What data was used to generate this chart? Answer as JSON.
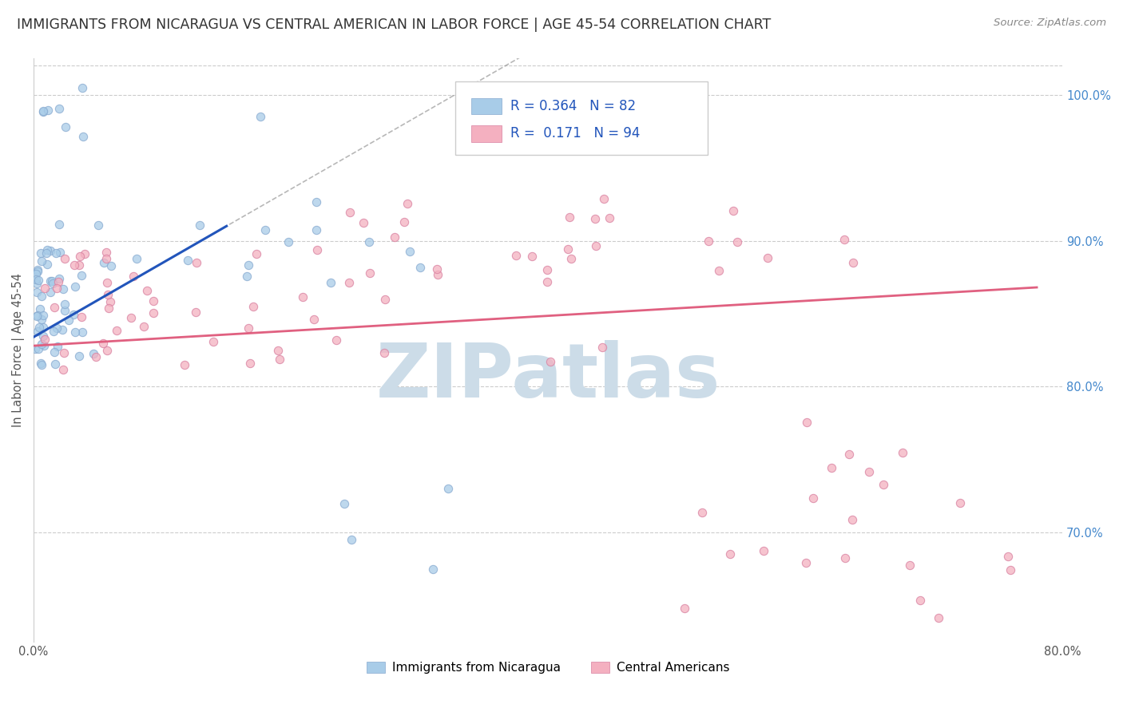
{
  "title": "IMMIGRANTS FROM NICARAGUA VS CENTRAL AMERICAN IN LABOR FORCE | AGE 45-54 CORRELATION CHART",
  "source": "Source: ZipAtlas.com",
  "ylabel": "In Labor Force | Age 45-54",
  "watermark": "ZIPatlas",
  "legend_label_1": "Immigrants from Nicaragua",
  "legend_label_2": "Central Americans",
  "r1": 0.364,
  "n1": 82,
  "r2": 0.171,
  "n2": 94,
  "color_nicaragua": "#a8cce8",
  "color_central": "#f4b0c0",
  "color_nicaragua_line": "#2255bb",
  "color_central_line": "#e06080",
  "xlim": [
    0.0,
    0.8
  ],
  "ylim": [
    0.625,
    1.025
  ],
  "ytick_right_vals": [
    0.7,
    0.8,
    0.9,
    1.0
  ],
  "yticklabels_right": [
    "70.0%",
    "80.0%",
    "90.0%",
    "100.0%"
  ],
  "background_color": "#ffffff",
  "title_color": "#333333",
  "title_fontsize": 12.5,
  "watermark_color": "#ccdce8",
  "watermark_fontsize": 68
}
